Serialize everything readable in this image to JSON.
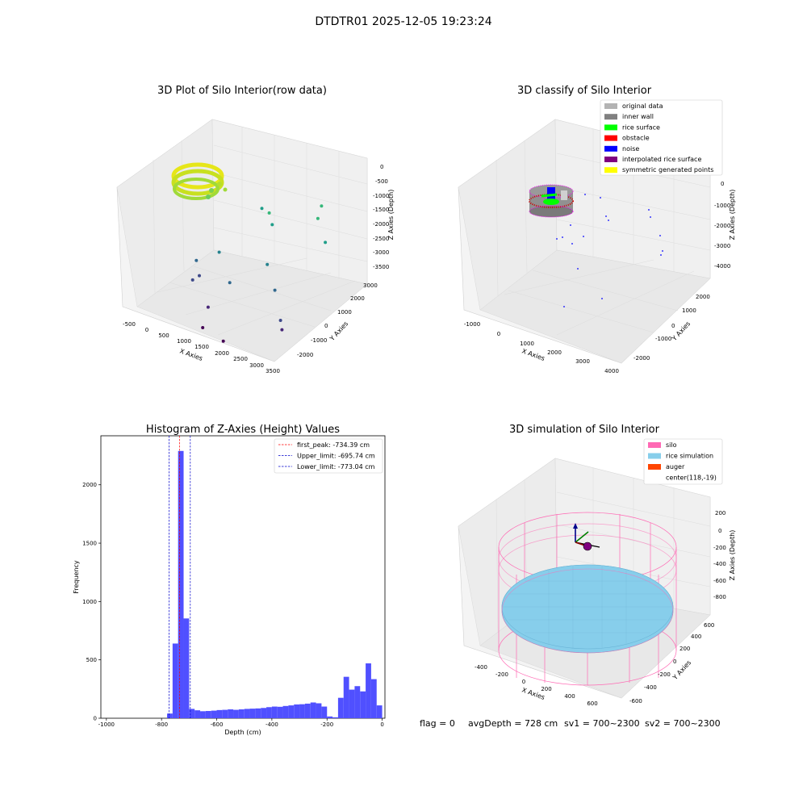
{
  "figure": {
    "suptitle": "DTDTR01 2025-12-05 19:23:24",
    "status": {
      "flag": "flag = 0",
      "avg_depth": "avgDepth = 728 cm",
      "sv1": "sv1 = 700~2300",
      "sv2": "sv2 = 700~2300"
    }
  },
  "chart_data": [
    {
      "type": "scatter",
      "projection": "3d",
      "title": "3D Plot of Silo Interior(row data)",
      "xlabel": "X Axies",
      "ylabel": "Y Axies",
      "zlabel": "Z Axies (Depth)",
      "x_ticks": [
        "-500",
        "0",
        "500",
        "1000",
        "1500",
        "2000",
        "2500",
        "3000",
        "3500"
      ],
      "y_ticks": [
        "-2000",
        "-1000",
        "0",
        "1000",
        "2000",
        "3000"
      ],
      "z_ticks": [
        "0",
        "-500",
        "-1000",
        "-1500",
        "-2000",
        "-2500",
        "-3000",
        "-3500"
      ],
      "xlim": [
        -700,
        3600
      ],
      "ylim": [
        -2400,
        3000
      ],
      "zlim": [
        -3700,
        100
      ],
      "colormap": "viridis",
      "points": [
        {
          "x": 2600,
          "y": 2200,
          "z": -1000
        },
        {
          "x": 3150,
          "y": 1400,
          "z": -1600
        },
        {
          "x": 2700,
          "y": 1800,
          "z": -1200
        },
        {
          "x": 1000,
          "y": 1700,
          "z": -1500
        },
        {
          "x": 1500,
          "y": 1200,
          "z": -1300
        },
        {
          "x": 1700,
          "y": 1000,
          "z": -1500
        },
        {
          "x": 2300,
          "y": -400,
          "z": -2000
        },
        {
          "x": 2700,
          "y": -700,
          "z": -2500
        },
        {
          "x": 3200,
          "y": -1300,
          "z": -3000
        },
        {
          "x": 3300,
          "y": -1400,
          "z": -3200
        },
        {
          "x": 900,
          "y": -600,
          "z": -2100
        },
        {
          "x": 1500,
          "y": -1100,
          "z": -2600
        },
        {
          "x": 1200,
          "y": -1800,
          "z": -3200
        },
        {
          "x": 400,
          "y": -1000,
          "z": -2400
        },
        {
          "x": 600,
          "y": -1200,
          "z": -2700
        },
        {
          "x": 500,
          "y": -1400,
          "z": -2800
        },
        {
          "x": 1300,
          "y": -2300,
          "z": -3600
        },
        {
          "x": 2000,
          "y": -2400,
          "z": -3700
        }
      ]
    },
    {
      "type": "scatter",
      "projection": "3d",
      "title": "3D classify of Silo Interior",
      "xlabel": "X Axies",
      "ylabel": "Y Axies",
      "zlabel": "Z Axies (Depth)",
      "x_ticks": [
        "-1000",
        "0",
        "1000",
        "2000",
        "3000",
        "4000"
      ],
      "y_ticks": [
        "-2000",
        "-1000",
        "0",
        "1000",
        "2000"
      ],
      "z_ticks": [
        "0",
        "-1000",
        "-2000",
        "-3000",
        "-4000"
      ],
      "xlim": [
        -1200,
        4100
      ],
      "ylim": [
        -2400,
        2400
      ],
      "zlim": [
        -4300,
        200
      ],
      "legend": {
        "position": "upper right",
        "entries": [
          {
            "label": "original data",
            "color": "#b3b3b3"
          },
          {
            "label": "inner wall",
            "color": "#808080"
          },
          {
            "label": "rice surface",
            "color": "#00ff00"
          },
          {
            "label": "obstacle",
            "color": "#ff0000"
          },
          {
            "label": "noise",
            "color": "#0000ff"
          },
          {
            "label": "interpolated rice surface",
            "color": "#800080"
          },
          {
            "label": "symmetric generated points",
            "color": "#ffff00"
          }
        ]
      }
    },
    {
      "type": "bar",
      "title": "Histogram of Z-Axies (Height) Values",
      "xlabel": "Depth (cm)",
      "ylabel": "Frequency",
      "xlim": [
        -1020,
        10
      ],
      "ylim": [
        0,
        2420
      ],
      "x_ticks": [
        -1000,
        -800,
        -600,
        -400,
        -200,
        0
      ],
      "y_ticks": [
        0,
        500,
        1000,
        1500,
        2000
      ],
      "bar_color": "#5050ff",
      "bin_width": 20,
      "bins": [
        {
          "left": -780,
          "count": 40
        },
        {
          "left": -760,
          "count": 640
        },
        {
          "left": -740,
          "count": 2290
        },
        {
          "left": -720,
          "count": 855
        },
        {
          "left": -700,
          "count": 80
        },
        {
          "left": -680,
          "count": 68
        },
        {
          "left": -660,
          "count": 60
        },
        {
          "left": -640,
          "count": 62
        },
        {
          "left": -620,
          "count": 65
        },
        {
          "left": -600,
          "count": 70
        },
        {
          "left": -580,
          "count": 72
        },
        {
          "left": -560,
          "count": 76
        },
        {
          "left": -540,
          "count": 72
        },
        {
          "left": -520,
          "count": 76
        },
        {
          "left": -500,
          "count": 80
        },
        {
          "left": -480,
          "count": 82
        },
        {
          "left": -460,
          "count": 84
        },
        {
          "left": -440,
          "count": 88
        },
        {
          "left": -420,
          "count": 95
        },
        {
          "left": -400,
          "count": 100
        },
        {
          "left": -380,
          "count": 98
        },
        {
          "left": -360,
          "count": 105
        },
        {
          "left": -340,
          "count": 110
        },
        {
          "left": -320,
          "count": 118
        },
        {
          "left": -300,
          "count": 120
        },
        {
          "left": -280,
          "count": 125
        },
        {
          "left": -260,
          "count": 135
        },
        {
          "left": -240,
          "count": 128
        },
        {
          "left": -220,
          "count": 100
        },
        {
          "left": -200,
          "count": 15
        },
        {
          "left": -180,
          "count": 8
        },
        {
          "left": -160,
          "count": 175
        },
        {
          "left": -140,
          "count": 355
        },
        {
          "left": -120,
          "count": 245
        },
        {
          "left": -100,
          "count": 275
        },
        {
          "left": -80,
          "count": 230
        },
        {
          "left": -60,
          "count": 470
        },
        {
          "left": -40,
          "count": 335
        },
        {
          "left": -20,
          "count": 110
        }
      ],
      "vlines": [
        {
          "x": -734.39,
          "color": "#ff0000",
          "label": "first_peak: -734.39 cm"
        },
        {
          "x": -695.74,
          "color": "#0000cc",
          "label": "Upper_limit: -695.74 cm"
        },
        {
          "x": -773.04,
          "color": "#0000cc",
          "label": "Lower_limit: -773.04 cm"
        }
      ],
      "legend": {
        "position": "upper right"
      }
    },
    {
      "type": "scatter",
      "projection": "3d",
      "title": "3D simulation of Silo Interior",
      "xlabel": "X Axies",
      "ylabel": "Y Axies",
      "zlabel": "Z Axies (Depth)",
      "x_ticks": [
        "-400",
        "-200",
        "0",
        "200",
        "400",
        "600"
      ],
      "y_ticks": [
        "-600",
        "-400",
        "-200",
        "0",
        "200",
        "400",
        "600"
      ],
      "z_ticks": [
        "200",
        "0",
        "-200",
        "-400",
        "-600",
        "-800"
      ],
      "xlim": [
        -600,
        700
      ],
      "ylim": [
        -700,
        700
      ],
      "zlim": [
        -950,
        300
      ],
      "legend": {
        "position": "upper right",
        "entries": [
          {
            "label": "silo",
            "color": "#ff69b4"
          },
          {
            "label": "rice simulation",
            "color": "#87ceeb"
          },
          {
            "label": "auger",
            "color": "#ff4500"
          },
          {
            "label": "center(118,-19)",
            "color": ""
          }
        ]
      }
    }
  ]
}
